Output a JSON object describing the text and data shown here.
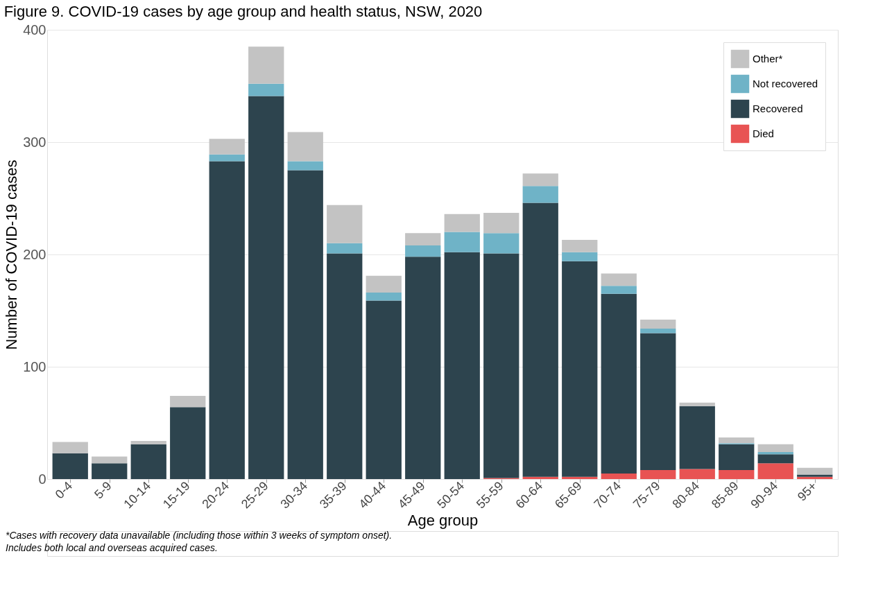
{
  "chart_data": {
    "type": "bar",
    "title": "Figure 9. COVID-19 cases by age group and health status, NSW, 2020",
    "xlabel": "Age group",
    "ylabel": "Number of COVID-19 cases",
    "categories": [
      "0-4",
      "5-9",
      "10-14",
      "15-19",
      "20-24",
      "25-29",
      "30-34",
      "35-39",
      "40-44",
      "45-49",
      "50-54",
      "55-59",
      "60-64",
      "65-69",
      "70-74",
      "75-79",
      "80-84",
      "85-89",
      "90-94",
      "95+"
    ],
    "stacked": true,
    "series": [
      {
        "name": "Died",
        "color": "#e85353",
        "values": [
          0,
          0,
          0,
          0,
          0,
          0,
          0,
          0,
          0,
          0,
          0,
          1,
          2,
          2,
          5,
          8,
          9,
          8,
          14,
          2
        ]
      },
      {
        "name": "Recovered",
        "color": "#2d444e",
        "values": [
          23,
          14,
          31,
          64,
          283,
          341,
          275,
          201,
          159,
          198,
          202,
          200,
          244,
          192,
          160,
          122,
          56,
          23,
          8,
          2
        ]
      },
      {
        "name": "Not recovered",
        "color": "#6fb3c7",
        "values": [
          0,
          0,
          0,
          0,
          6,
          11,
          8,
          9,
          7,
          10,
          18,
          18,
          15,
          8,
          7,
          4,
          0,
          1,
          2,
          0
        ]
      },
      {
        "name": "Other*",
        "color": "#c3c3c3",
        "values": [
          10,
          6,
          3,
          10,
          14,
          33,
          26,
          34,
          15,
          11,
          16,
          18,
          11,
          11,
          11,
          8,
          3,
          5,
          7,
          6
        ]
      }
    ],
    "ylim": [
      0,
      400
    ],
    "yticks": [
      0,
      100,
      200,
      300,
      400
    ],
    "grid": "y",
    "legend": "top right",
    "annotations": [
      "*Cases with recovery data unavailable (including those within 3 weeks of symptom onset).",
      "Includes both local and overseas acquired cases."
    ]
  }
}
